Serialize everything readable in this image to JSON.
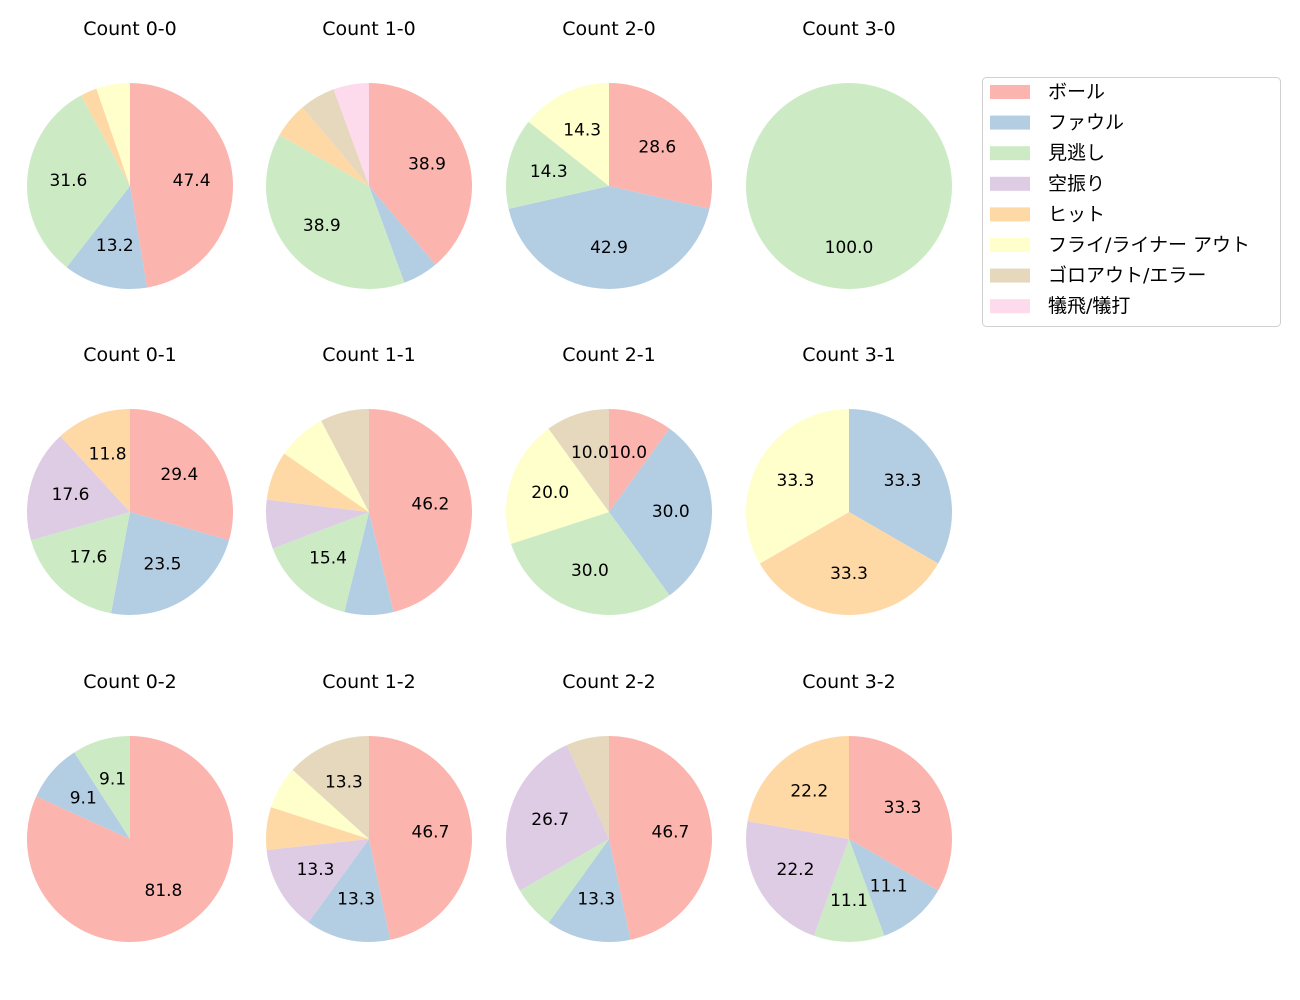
{
  "chart_data": {
    "type": "pie",
    "categories": [
      "ボール",
      "ファウル",
      "見逃し",
      "空振り",
      "ヒット",
      "フライ/ライナー アウト",
      "ゴロアウト/エラー",
      "犠飛/犠打"
    ],
    "colors": [
      "#fbb4ae",
      "#b3cde3",
      "#ccebc5",
      "#decbe4",
      "#fed9a6",
      "#ffffcc",
      "#e5d8bd",
      "#fddaec"
    ],
    "legend_position": "top-right",
    "label_threshold_percent": 9,
    "charts": [
      {
        "title": "Count 0-0",
        "values": [
          47.4,
          13.2,
          31.6,
          0,
          2.6,
          5.3,
          0,
          0
        ]
      },
      {
        "title": "Count 1-0",
        "values": [
          38.9,
          5.6,
          38.9,
          0,
          5.6,
          0,
          5.6,
          5.6
        ]
      },
      {
        "title": "Count 2-0",
        "values": [
          28.6,
          42.9,
          14.3,
          0,
          0,
          14.3,
          0,
          0
        ]
      },
      {
        "title": "Count 3-0",
        "values": [
          0,
          0,
          100.0,
          0,
          0,
          0,
          0,
          0
        ]
      },
      {
        "title": "Count 0-1",
        "values": [
          29.4,
          23.5,
          17.6,
          17.6,
          11.8,
          0,
          0,
          0
        ]
      },
      {
        "title": "Count 1-1",
        "values": [
          46.2,
          7.7,
          15.4,
          7.7,
          7.7,
          7.7,
          7.7,
          0
        ]
      },
      {
        "title": "Count 2-1",
        "values": [
          10.0,
          30.0,
          30.0,
          0,
          0,
          20.0,
          10.0,
          0
        ]
      },
      {
        "title": "Count 3-1",
        "values": [
          0,
          33.3,
          0,
          0,
          33.3,
          33.3,
          0,
          0
        ]
      },
      {
        "title": "Count 0-2",
        "values": [
          81.8,
          9.1,
          9.1,
          0,
          0,
          0,
          0,
          0
        ]
      },
      {
        "title": "Count 1-2",
        "values": [
          46.7,
          13.3,
          0,
          13.3,
          6.7,
          6.7,
          13.3,
          0
        ]
      },
      {
        "title": "Count 2-2",
        "values": [
          46.7,
          13.3,
          6.7,
          26.7,
          0,
          0,
          6.7,
          0
        ]
      },
      {
        "title": "Count 3-2",
        "values": [
          33.3,
          11.1,
          11.1,
          22.2,
          22.2,
          0,
          0,
          0
        ]
      }
    ]
  }
}
